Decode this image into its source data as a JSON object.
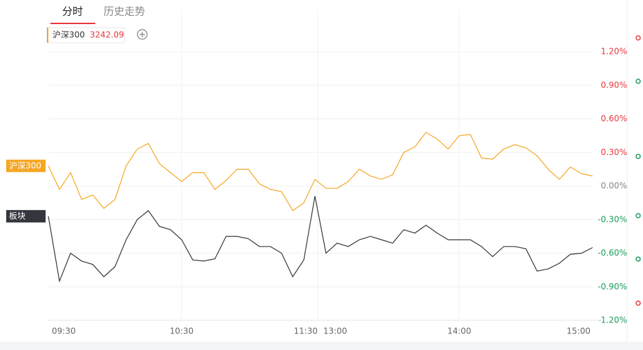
{
  "tabs": [
    "分时",
    "历史走势"
  ],
  "chart_data": {
    "type": "line",
    "quote": 3242.09,
    "categories": [
      "09:30",
      null,
      null,
      null,
      null,
      null,
      null,
      null,
      null,
      null,
      null,
      null,
      "10:30",
      null,
      null,
      null,
      null,
      null,
      null,
      null,
      null,
      null,
      null,
      null,
      "11:30",
      "13:00",
      null,
      null,
      null,
      null,
      null,
      null,
      null,
      null,
      null,
      null,
      null,
      "14:00",
      null,
      null,
      null,
      null,
      null,
      null,
      null,
      null,
      null,
      null,
      null,
      "15:00"
    ],
    "series": [
      {
        "name": "沪深300",
        "color": "#f5a623",
        "values": [
          0.18,
          -0.03,
          0.12,
          -0.12,
          -0.08,
          -0.2,
          -0.12,
          0.18,
          0.33,
          0.38,
          0.2,
          0.12,
          0.04,
          0.12,
          0.12,
          -0.03,
          0.05,
          0.15,
          0.15,
          0.02,
          -0.03,
          -0.05,
          -0.22,
          -0.15,
          0.06,
          -0.02,
          -0.02,
          0.04,
          0.15,
          0.09,
          0.06,
          0.1,
          0.3,
          0.35,
          0.48,
          0.42,
          0.33,
          0.45,
          0.46,
          0.25,
          0.24,
          0.33,
          0.37,
          0.34,
          0.27,
          0.15,
          0.06,
          0.17,
          0.11,
          0.09
        ]
      },
      {
        "name": "板块",
        "color": "#33363d",
        "values": [
          -0.27,
          -0.85,
          -0.6,
          -0.67,
          -0.7,
          -0.81,
          -0.72,
          -0.48,
          -0.3,
          -0.22,
          -0.36,
          -0.39,
          -0.48,
          -0.66,
          -0.67,
          -0.65,
          -0.45,
          -0.45,
          -0.47,
          -0.54,
          -0.54,
          -0.6,
          -0.81,
          -0.66,
          -0.09,
          -0.6,
          -0.51,
          -0.54,
          -0.48,
          -0.45,
          -0.48,
          -0.51,
          -0.39,
          -0.42,
          -0.35,
          -0.42,
          -0.48,
          -0.48,
          -0.48,
          -0.54,
          -0.63,
          -0.54,
          -0.54,
          -0.56,
          -0.76,
          -0.74,
          -0.69,
          -0.61,
          -0.6,
          -0.55
        ]
      }
    ],
    "ylim": [
      -1.2,
      1.2
    ],
    "yticks": [
      {
        "value": 1.2,
        "label": "1.20%"
      },
      {
        "value": 0.9,
        "label": "0.90%"
      },
      {
        "value": 0.6,
        "label": "0.60%"
      },
      {
        "value": 0.3,
        "label": "0.30%"
      },
      {
        "value": 0,
        "label": "0.00%"
      },
      {
        "value": -0.3,
        "label": "-0.30%"
      },
      {
        "value": -0.6,
        "label": "-0.60%"
      },
      {
        "value": -0.9,
        "label": "-0.90%"
      },
      {
        "value": -1.2,
        "label": "-1.20%"
      }
    ],
    "grid": true
  }
}
